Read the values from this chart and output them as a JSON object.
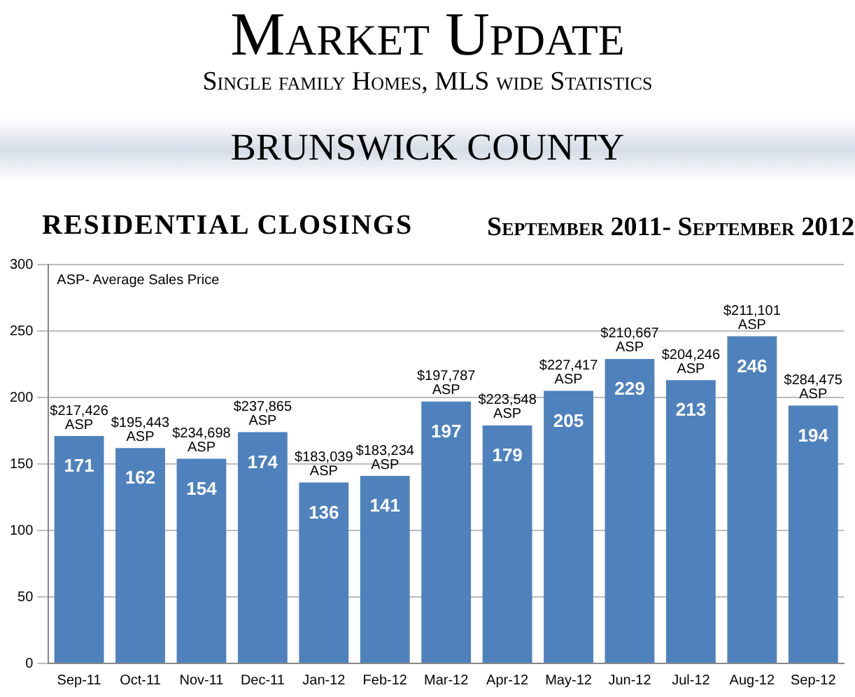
{
  "chart_data": {
    "type": "bar",
    "title": "Market Update",
    "subtitle": "Single family Homes, MLS wide Statistics",
    "categories": [
      "Sep-11",
      "Oct-11",
      "Nov-11",
      "Dec-11",
      "Jan-12",
      "Feb-12",
      "Mar-12",
      "Apr-12",
      "May-12",
      "Jun-12",
      "Jul-12",
      "Aug-12",
      "Sep-12"
    ],
    "values": [
      171,
      162,
      154,
      174,
      136,
      141,
      197,
      179,
      205,
      229,
      213,
      246,
      194
    ],
    "color": "#4f81bd",
    "ylim": [
      0,
      300
    ],
    "yticks": [
      0,
      50,
      100,
      150,
      200,
      250,
      300
    ],
    "grid": "y",
    "data_labels": true,
    "annotations": [
      "BRUNSWICK COUNTY",
      "RESIDENTIAL CLOSINGS",
      "September 2011- September 2012",
      "ASP- Average Sales Price",
      {
        "text": "$217,426\nASP",
        "x": "Sep-11",
        "y": 171
      },
      {
        "text": "$195,443\nASP",
        "x": "Oct-11",
        "y": 162
      },
      {
        "text": "$234,698\nASP",
        "x": "Nov-11",
        "y": 154
      },
      {
        "text": "$237,865\nASP",
        "x": "Dec-11",
        "y": 174
      },
      {
        "text": "$183,039\nASP",
        "x": "Jan-12",
        "y": 136
      },
      {
        "text": "$183,234\nASP",
        "x": "Feb-12",
        "y": 141
      },
      {
        "text": "$197,787\nASP",
        "x": "Mar-12",
        "y": 197
      },
      {
        "text": "$223,548\nASP",
        "x": "Apr-12",
        "y": 179
      },
      {
        "text": "$227,417\nASP",
        "x": "May-12",
        "y": 205
      },
      {
        "text": "$210,667\nASP",
        "x": "Jun-12",
        "y": 229
      },
      {
        "text": "$204,246\nASP",
        "x": "Jul-12",
        "y": 213
      },
      {
        "text": "$211,101\nASP",
        "x": "Aug-12",
        "y": 246
      },
      {
        "text": "$284,475\nASP",
        "x": "Sep-12",
        "y": 194
      }
    ]
  }
}
